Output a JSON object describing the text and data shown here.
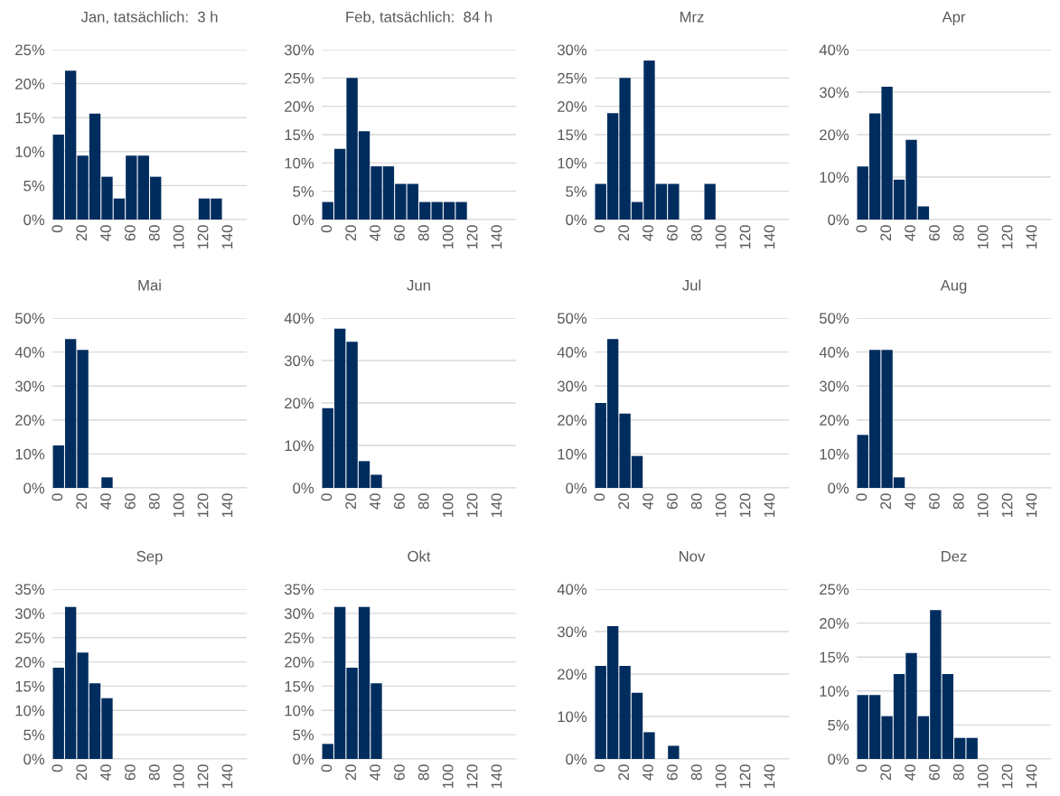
{
  "chart_data": [
    {
      "type": "bar",
      "title": "Jan, tatsächlich:  3 h",
      "categories": [
        "0",
        null,
        "20",
        null,
        "40",
        null,
        "60",
        null,
        "80",
        null,
        "100",
        null,
        "120",
        null,
        "140",
        null
      ],
      "values": [
        12.5,
        21.9,
        9.4,
        15.6,
        6.3,
        3.1,
        9.4,
        9.4,
        6.3,
        0,
        0,
        0,
        3.1,
        3.1,
        0,
        0
      ],
      "color": "#002d5e",
      "ylim": [
        0,
        25
      ],
      "yticks": [
        {
          "value": 0,
          "label": "0%"
        },
        {
          "value": 5,
          "label": "5%"
        },
        {
          "value": 10,
          "label": "10%"
        },
        {
          "value": 15,
          "label": "15%"
        },
        {
          "value": 20,
          "label": "20%"
        },
        {
          "value": 25,
          "label": "25%"
        }
      ],
      "grid": "y"
    },
    {
      "type": "bar",
      "title": "Feb, tatsächlich:  84 h",
      "categories": [
        "0",
        null,
        "20",
        null,
        "40",
        null,
        "60",
        null,
        "80",
        null,
        "100",
        null,
        "120",
        null,
        "140",
        null
      ],
      "values": [
        3.1,
        12.5,
        25,
        15.6,
        9.4,
        9.4,
        6.3,
        6.3,
        3.1,
        3.1,
        3.1,
        3.1,
        0,
        0,
        0,
        0
      ],
      "color": "#002d5e",
      "ylim": [
        0,
        30
      ],
      "yticks": [
        {
          "value": 0,
          "label": "0%"
        },
        {
          "value": 5,
          "label": "5%"
        },
        {
          "value": 10,
          "label": "10%"
        },
        {
          "value": 15,
          "label": "15%"
        },
        {
          "value": 20,
          "label": "20%"
        },
        {
          "value": 25,
          "label": "25%"
        },
        {
          "value": 30,
          "label": "30%"
        }
      ],
      "grid": "y"
    },
    {
      "type": "bar",
      "title": "Mrz",
      "categories": [
        "0",
        null,
        "20",
        null,
        "40",
        null,
        "60",
        null,
        "80",
        null,
        "100",
        null,
        "120",
        null,
        "140",
        null
      ],
      "values": [
        6.3,
        18.8,
        25,
        3.1,
        28.1,
        6.3,
        6.3,
        0,
        0,
        6.3,
        0,
        0,
        0,
        0,
        0,
        0
      ],
      "color": "#002d5e",
      "ylim": [
        0,
        30
      ],
      "yticks": [
        {
          "value": 0,
          "label": "0%"
        },
        {
          "value": 5,
          "label": "5%"
        },
        {
          "value": 10,
          "label": "10%"
        },
        {
          "value": 15,
          "label": "15%"
        },
        {
          "value": 20,
          "label": "20%"
        },
        {
          "value": 25,
          "label": "25%"
        },
        {
          "value": 30,
          "label": "30%"
        }
      ],
      "grid": "y"
    },
    {
      "type": "bar",
      "title": "Apr",
      "categories": [
        "0",
        null,
        "20",
        null,
        "40",
        null,
        "60",
        null,
        "80",
        null,
        "100",
        null,
        "120",
        null,
        "140",
        null
      ],
      "values": [
        12.5,
        25,
        31.3,
        9.4,
        18.8,
        3.1,
        0,
        0,
        0,
        0,
        0,
        0,
        0,
        0,
        0,
        0
      ],
      "color": "#002d5e",
      "ylim": [
        0,
        40
      ],
      "yticks": [
        {
          "value": 0,
          "label": "0%"
        },
        {
          "value": 10,
          "label": "10%"
        },
        {
          "value": 20,
          "label": "20%"
        },
        {
          "value": 30,
          "label": "30%"
        },
        {
          "value": 40,
          "label": "40%"
        }
      ],
      "grid": "y"
    },
    {
      "type": "bar",
      "title": "Mai",
      "categories": [
        "0",
        null,
        "20",
        null,
        "40",
        null,
        "60",
        null,
        "80",
        null,
        "100",
        null,
        "120",
        null,
        "140",
        null
      ],
      "values": [
        12.5,
        43.8,
        40.6,
        0,
        3.1,
        0,
        0,
        0,
        0,
        0,
        0,
        0,
        0,
        0,
        0,
        0
      ],
      "color": "#002d5e",
      "ylim": [
        0,
        50
      ],
      "yticks": [
        {
          "value": 0,
          "label": "0%"
        },
        {
          "value": 10,
          "label": "10%"
        },
        {
          "value": 20,
          "label": "20%"
        },
        {
          "value": 30,
          "label": "30%"
        },
        {
          "value": 40,
          "label": "40%"
        },
        {
          "value": 50,
          "label": "50%"
        }
      ],
      "grid": "y"
    },
    {
      "type": "bar",
      "title": "Jun",
      "categories": [
        "0",
        null,
        "20",
        null,
        "40",
        null,
        "60",
        null,
        "80",
        null,
        "100",
        null,
        "120",
        null,
        "140",
        null
      ],
      "values": [
        18.8,
        37.5,
        34.4,
        6.3,
        3.1,
        0,
        0,
        0,
        0,
        0,
        0,
        0,
        0,
        0,
        0,
        0
      ],
      "color": "#002d5e",
      "ylim": [
        0,
        40
      ],
      "yticks": [
        {
          "value": 0,
          "label": "0%"
        },
        {
          "value": 10,
          "label": "10%"
        },
        {
          "value": 20,
          "label": "20%"
        },
        {
          "value": 30,
          "label": "30%"
        },
        {
          "value": 40,
          "label": "40%"
        }
      ],
      "grid": "y"
    },
    {
      "type": "bar",
      "title": "Jul",
      "categories": [
        "0",
        null,
        "20",
        null,
        "40",
        null,
        "60",
        null,
        "80",
        null,
        "100",
        null,
        "120",
        null,
        "140",
        null
      ],
      "values": [
        25,
        43.8,
        21.9,
        9.4,
        0,
        0,
        0,
        0,
        0,
        0,
        0,
        0,
        0,
        0,
        0,
        0
      ],
      "color": "#002d5e",
      "ylim": [
        0,
        50
      ],
      "yticks": [
        {
          "value": 0,
          "label": "0%"
        },
        {
          "value": 10,
          "label": "10%"
        },
        {
          "value": 20,
          "label": "20%"
        },
        {
          "value": 30,
          "label": "30%"
        },
        {
          "value": 40,
          "label": "40%"
        },
        {
          "value": 50,
          "label": "50%"
        }
      ],
      "grid": "y"
    },
    {
      "type": "bar",
      "title": "Aug",
      "categories": [
        "0",
        null,
        "20",
        null,
        "40",
        null,
        "60",
        null,
        "80",
        null,
        "100",
        null,
        "120",
        null,
        "140",
        null
      ],
      "values": [
        15.6,
        40.6,
        40.6,
        3.1,
        0,
        0,
        0,
        0,
        0,
        0,
        0,
        0,
        0,
        0,
        0,
        0
      ],
      "color": "#002d5e",
      "ylim": [
        0,
        50
      ],
      "yticks": [
        {
          "value": 0,
          "label": "0%"
        },
        {
          "value": 10,
          "label": "10%"
        },
        {
          "value": 20,
          "label": "20%"
        },
        {
          "value": 30,
          "label": "30%"
        },
        {
          "value": 40,
          "label": "40%"
        },
        {
          "value": 50,
          "label": "50%"
        }
      ],
      "grid": "y"
    },
    {
      "type": "bar",
      "title": "Sep",
      "categories": [
        "0",
        null,
        "20",
        null,
        "40",
        null,
        "60",
        null,
        "80",
        null,
        "100",
        null,
        "120",
        null,
        "140",
        null
      ],
      "values": [
        18.8,
        31.3,
        21.9,
        15.6,
        12.5,
        0,
        0,
        0,
        0,
        0,
        0,
        0,
        0,
        0,
        0,
        0
      ],
      "color": "#002d5e",
      "ylim": [
        0,
        35
      ],
      "yticks": [
        {
          "value": 0,
          "label": "0%"
        },
        {
          "value": 5,
          "label": "5%"
        },
        {
          "value": 10,
          "label": "10%"
        },
        {
          "value": 15,
          "label": "15%"
        },
        {
          "value": 20,
          "label": "20%"
        },
        {
          "value": 25,
          "label": "25%"
        },
        {
          "value": 30,
          "label": "30%"
        },
        {
          "value": 35,
          "label": "35%"
        }
      ],
      "grid": "y"
    },
    {
      "type": "bar",
      "title": "Okt",
      "categories": [
        "0",
        null,
        "20",
        null,
        "40",
        null,
        "60",
        null,
        "80",
        null,
        "100",
        null,
        "120",
        null,
        "140",
        null
      ],
      "values": [
        3.1,
        31.3,
        18.8,
        31.3,
        15.6,
        0,
        0,
        0,
        0,
        0,
        0,
        0,
        0,
        0,
        0,
        0
      ],
      "color": "#002d5e",
      "ylim": [
        0,
        35
      ],
      "yticks": [
        {
          "value": 0,
          "label": "0%"
        },
        {
          "value": 5,
          "label": "5%"
        },
        {
          "value": 10,
          "label": "10%"
        },
        {
          "value": 15,
          "label": "15%"
        },
        {
          "value": 20,
          "label": "20%"
        },
        {
          "value": 25,
          "label": "25%"
        },
        {
          "value": 30,
          "label": "30%"
        },
        {
          "value": 35,
          "label": "35%"
        }
      ],
      "grid": "y"
    },
    {
      "type": "bar",
      "title": "Nov",
      "categories": [
        "0",
        null,
        "20",
        null,
        "40",
        null,
        "60",
        null,
        "80",
        null,
        "100",
        null,
        "120",
        null,
        "140",
        null
      ],
      "values": [
        21.9,
        31.3,
        21.9,
        15.6,
        6.3,
        0,
        3.1,
        0,
        0,
        0,
        0,
        0,
        0,
        0,
        0,
        0
      ],
      "color": "#002d5e",
      "ylim": [
        0,
        40
      ],
      "yticks": [
        {
          "value": 0,
          "label": "0%"
        },
        {
          "value": 10,
          "label": "10%"
        },
        {
          "value": 20,
          "label": "20%"
        },
        {
          "value": 30,
          "label": "30%"
        },
        {
          "value": 40,
          "label": "40%"
        }
      ],
      "grid": "y"
    },
    {
      "type": "bar",
      "title": "Dez",
      "categories": [
        "0",
        null,
        "20",
        null,
        "40",
        null,
        "60",
        null,
        "80",
        null,
        "100",
        null,
        "120",
        null,
        "140",
        null
      ],
      "values": [
        9.4,
        9.4,
        6.3,
        12.5,
        15.6,
        6.3,
        21.9,
        12.5,
        3.1,
        3.1,
        0,
        0,
        0,
        0,
        0,
        0
      ],
      "color": "#002d5e",
      "ylim": [
        0,
        25
      ],
      "yticks": [
        {
          "value": 0,
          "label": "0%"
        },
        {
          "value": 5,
          "label": "5%"
        },
        {
          "value": 10,
          "label": "10%"
        },
        {
          "value": 15,
          "label": "15%"
        },
        {
          "value": 20,
          "label": "20%"
        },
        {
          "value": 25,
          "label": "25%"
        }
      ],
      "grid": "y"
    }
  ]
}
